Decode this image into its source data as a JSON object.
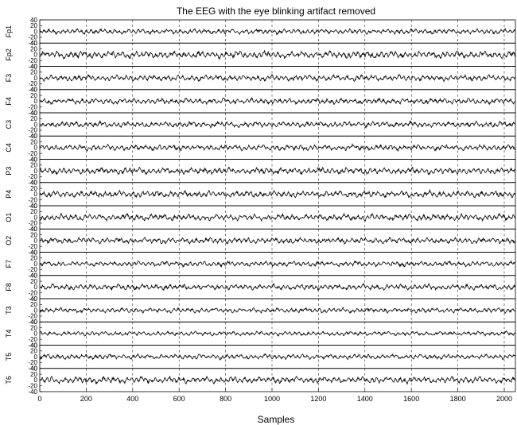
{
  "chart_data": {
    "type": "line",
    "title": "The EEG with the eye blinking artifact removed",
    "xlabel": "Samples",
    "xlim": [
      0,
      2048
    ],
    "x_ticks": [
      "0",
      "200",
      "400",
      "600",
      "800",
      "1000",
      "1200",
      "1400",
      "1600",
      "1800",
      "2000"
    ],
    "ylim": [
      -40,
      40
    ],
    "y_ticks": [
      "40",
      "20",
      "0",
      "-20",
      "-40"
    ],
    "grid": "vertical dashed",
    "series": [
      {
        "name": "Fp1",
        "amplitude": 7
      },
      {
        "name": "Fp2",
        "amplitude": 10
      },
      {
        "name": "F3",
        "amplitude": 8
      },
      {
        "name": "F4",
        "amplitude": 8
      },
      {
        "name": "C3",
        "amplitude": 8
      },
      {
        "name": "C4",
        "amplitude": 8
      },
      {
        "name": "P3",
        "amplitude": 9
      },
      {
        "name": "P4",
        "amplitude": 9
      },
      {
        "name": "O1",
        "amplitude": 9
      },
      {
        "name": "O2",
        "amplitude": 8
      },
      {
        "name": "F7",
        "amplitude": 7
      },
      {
        "name": "F8",
        "amplitude": 8
      },
      {
        "name": "T3",
        "amplitude": 7
      },
      {
        "name": "T4",
        "amplitude": 6
      },
      {
        "name": "T5",
        "amplitude": 7
      },
      {
        "name": "T6",
        "amplitude": 9
      }
    ]
  }
}
